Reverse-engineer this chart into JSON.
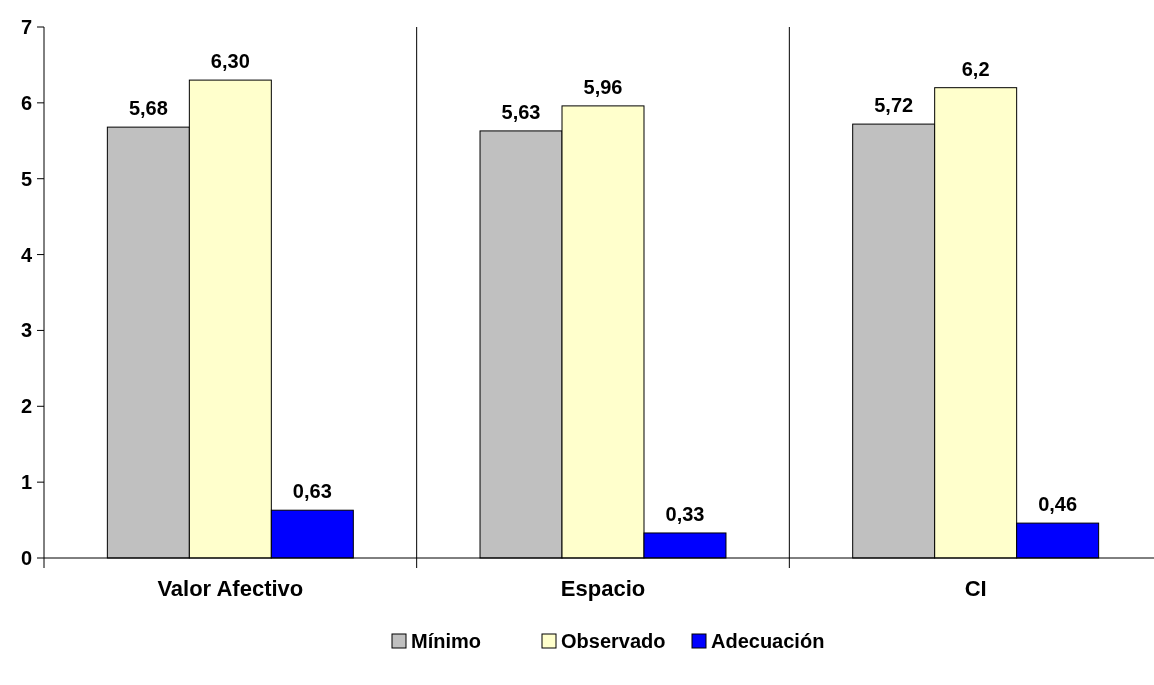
{
  "chart_data": {
    "type": "bar",
    "categories": [
      "Valor Afectivo",
      "Espacio",
      "CI"
    ],
    "series": [
      {
        "name": "Mínimo",
        "color": "#c0c0c0",
        "values": [
          5.68,
          5.63,
          5.72
        ],
        "value_labels": [
          "5,68",
          "5,63",
          "5,72"
        ]
      },
      {
        "name": "Observado",
        "color": "#ffffcc",
        "values": [
          6.3,
          5.96,
          6.2
        ],
        "value_labels": [
          "6,30",
          "5,96",
          "6,2"
        ]
      },
      {
        "name": "Adecuación",
        "color": "#0000ff",
        "values": [
          0.63,
          0.33,
          0.46
        ],
        "value_labels": [
          "0,63",
          "0,33",
          "0,46"
        ]
      }
    ],
    "ylim": [
      0,
      7
    ],
    "yticks": [
      0,
      1,
      2,
      3,
      4,
      5,
      6,
      7
    ],
    "grid": "x",
    "legend": "bottom"
  }
}
